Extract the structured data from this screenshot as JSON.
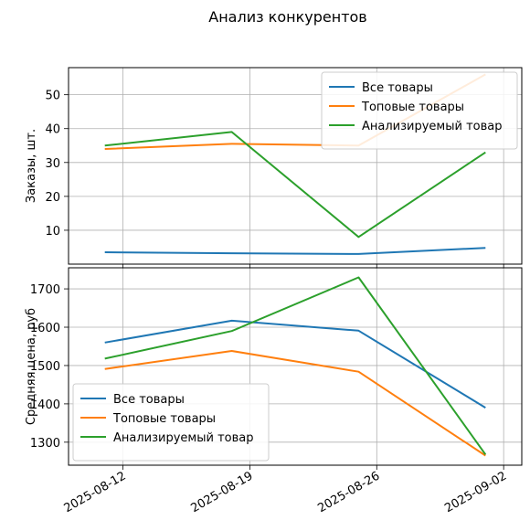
{
  "title": "Анализ конкурентов",
  "colors": {
    "all": "#1f77b4",
    "top": "#ff7f0e",
    "target": "#2ca02c",
    "grid": "#b0b0b0"
  },
  "chart_data": [
    {
      "type": "line",
      "ylabel": "Заказы, шт.",
      "x": [
        "2025-08-11",
        "2025-08-18",
        "2025-08-25",
        "2025-09-01"
      ],
      "ylim": [
        0,
        58
      ],
      "yticks": [
        10,
        20,
        30,
        40,
        50
      ],
      "grid": true,
      "legend": "top-right",
      "series": [
        {
          "name": "Все товары",
          "color_key": "all",
          "values": [
            3.5,
            3.2,
            3.0,
            4.8
          ]
        },
        {
          "name": "Топовые товары",
          "color_key": "top",
          "values": [
            34,
            35.5,
            35,
            56
          ]
        },
        {
          "name": "Анализируемый товар",
          "color_key": "target",
          "values": [
            35,
            39,
            8,
            33
          ]
        }
      ]
    },
    {
      "type": "line",
      "ylabel": "Средняя цена, руб",
      "x": [
        "2025-08-11",
        "2025-08-18",
        "2025-08-25",
        "2025-09-01"
      ],
      "ylim": [
        1240,
        1755
      ],
      "yticks": [
        1300,
        1400,
        1500,
        1600,
        1700
      ],
      "xticks": [
        "2025-08-12",
        "2025-08-19",
        "2025-08-26",
        "2025-09-02"
      ],
      "grid": true,
      "legend": "bottom-left",
      "series": [
        {
          "name": "Все товары",
          "color_key": "all",
          "values": [
            1560,
            1617,
            1591,
            1390
          ]
        },
        {
          "name": "Топовые товары",
          "color_key": "top",
          "values": [
            1491,
            1538,
            1484,
            1265
          ]
        },
        {
          "name": "Анализируемый товар",
          "color_key": "target",
          "values": [
            1518,
            1590,
            1730,
            1268
          ]
        }
      ]
    }
  ]
}
